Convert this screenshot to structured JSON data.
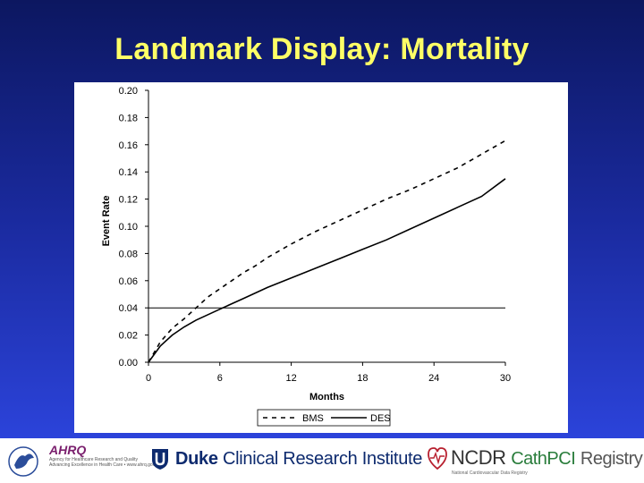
{
  "slide": {
    "title": "Landmark Display: Mortality"
  },
  "chart_data": {
    "type": "line",
    "title": "",
    "xlabel": "Months",
    "ylabel": "Event Rate",
    "xlim": [
      0,
      30
    ],
    "ylim": [
      0.0,
      0.2
    ],
    "x_ticks": [
      "0",
      "6",
      "12",
      "18",
      "24",
      "30"
    ],
    "y_ticks": [
      "0.20",
      "0.18",
      "0.16",
      "0.14",
      "0.12",
      "0.10",
      "0.08",
      "0.06",
      "0.04",
      "0.02",
      "0.00"
    ],
    "grid": false,
    "reference_line": {
      "y": 0.04
    },
    "legend": {
      "position": "bottom"
    },
    "series": [
      {
        "name": "BMS",
        "style": "dashed",
        "x": [
          0,
          1,
          2,
          3,
          4,
          5,
          6,
          7,
          8,
          9,
          10,
          12,
          14,
          16,
          18,
          20,
          22,
          24,
          26,
          28,
          30
        ],
        "y": [
          0.0,
          0.015,
          0.025,
          0.032,
          0.04,
          0.048,
          0.054,
          0.06,
          0.066,
          0.071,
          0.077,
          0.087,
          0.096,
          0.104,
          0.112,
          0.12,
          0.127,
          0.135,
          0.143,
          0.153,
          0.163
        ]
      },
      {
        "name": "DES",
        "style": "solid",
        "x": [
          0,
          1,
          2,
          3,
          4,
          5,
          6,
          7,
          8,
          9,
          10,
          12,
          14,
          16,
          18,
          20,
          22,
          24,
          26,
          28,
          30
        ],
        "y": [
          0.0,
          0.012,
          0.02,
          0.026,
          0.031,
          0.035,
          0.039,
          0.043,
          0.047,
          0.051,
          0.055,
          0.062,
          0.069,
          0.076,
          0.083,
          0.09,
          0.098,
          0.106,
          0.114,
          0.122,
          0.135
        ]
      }
    ]
  },
  "footer": {
    "hhs_icon": "hhs-eagle-icon",
    "ahrq_name": "AHRQ",
    "ahrq_tagline": "Agency for Healthcare Research and Quality",
    "ahrq_subtag": "Advancing Excellence in Health Care • www.ahrq.gov",
    "duke_icon": "duke-shield-icon",
    "duke_bold": "Duke",
    "duke_rest": "Clinical Research Institute",
    "ncdr_icon": "heartbeat-icon",
    "ncdr_name": "NCDR",
    "ncdr_cath": "CathPCI",
    "ncdr_registry": "Registry",
    "ncdr_fine": "National Cardiovascular Data Registry"
  }
}
